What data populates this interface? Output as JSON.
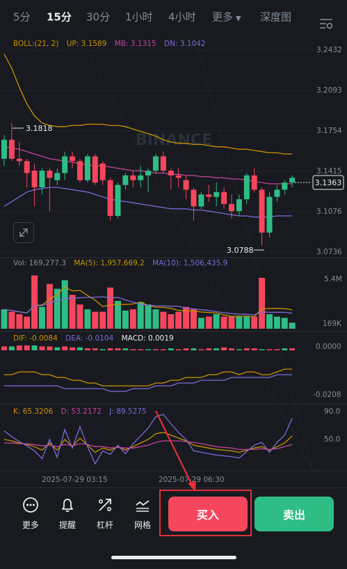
{
  "tabs": [
    {
      "label": "5分"
    },
    {
      "label": "15分"
    },
    {
      "label": "30分"
    },
    {
      "label": "1小时"
    },
    {
      "label": "4小时"
    },
    {
      "label": "更多"
    },
    {
      "label": "深度图"
    }
  ],
  "active_tab": "15分",
  "boll": {
    "label": "BOLL:(21, 2)",
    "up": "UP: 3.1589",
    "mb": "MB: 3.1315",
    "dn": "DN: 3.1042"
  },
  "price_axis": [
    "3.2432",
    "3.2093",
    "3.1754",
    "3.1415",
    "3.1076",
    "3.0736"
  ],
  "current_price": "3.1363",
  "high_marker": "3.1818",
  "low_marker": "3.0788",
  "watermark": "BINANCE",
  "volume": {
    "vol": "Vol: 169,277.3",
    "ma5": "MA(5): 1,957,669.2",
    "ma10": "MA(10): 1,506,435.9",
    "axis_top": "5.4M",
    "axis_bottom": "169K"
  },
  "macd": {
    "dif": "DIF: -0.0084",
    "dea": "DEA: -0.0104",
    "macd": "MACD: 0.0019",
    "axis_top": "0.0000",
    "axis_bottom": "-0.0208"
  },
  "kdj": {
    "k": "K: 65.3206",
    "d": "D: 53.2172",
    "j": "J: 89.5275",
    "axis_top": "90.0",
    "axis_mid": "50.0"
  },
  "time_labels": [
    "2025-07-29 03:15",
    "2025-07-29 06:30"
  ],
  "toolbar": [
    {
      "label": "更多",
      "icon": "more-dots-icon"
    },
    {
      "label": "提醒",
      "icon": "bell-icon"
    },
    {
      "label": "杠杆",
      "icon": "leverage-icon"
    },
    {
      "label": "网格",
      "icon": "grid-chart-icon"
    }
  ],
  "buy_label": "买入",
  "sell_label": "卖出",
  "colors": {
    "up": "#2ebd85",
    "down": "#f6465d",
    "boll_up": "#c99400",
    "boll_mb": "#c2449b",
    "boll_dn": "#7d6bd8"
  },
  "chart_data": {
    "type": "candlestick",
    "y_range": [
      3.0736,
      3.2432
    ],
    "candles": [
      {
        "o": 3.152,
        "h": 3.172,
        "l": 3.146,
        "c": 3.168
      },
      {
        "o": 3.168,
        "h": 3.182,
        "l": 3.15,
        "c": 3.152
      },
      {
        "o": 3.152,
        "h": 3.166,
        "l": 3.146,
        "c": 3.15
      },
      {
        "o": 3.15,
        "h": 3.152,
        "l": 3.128,
        "c": 3.14
      },
      {
        "o": 3.142,
        "h": 3.148,
        "l": 3.112,
        "c": 3.128
      },
      {
        "o": 3.128,
        "h": 3.144,
        "l": 3.122,
        "c": 3.142
      },
      {
        "o": 3.142,
        "h": 3.144,
        "l": 3.108,
        "c": 3.136
      },
      {
        "o": 3.134,
        "h": 3.144,
        "l": 3.13,
        "c": 3.14
      },
      {
        "o": 3.14,
        "h": 3.158,
        "l": 3.134,
        "c": 3.154
      },
      {
        "o": 3.154,
        "h": 3.158,
        "l": 3.144,
        "c": 3.15
      },
      {
        "o": 3.15,
        "h": 3.152,
        "l": 3.132,
        "c": 3.134
      },
      {
        "o": 3.134,
        "h": 3.156,
        "l": 3.132,
        "c": 3.154
      },
      {
        "o": 3.154,
        "h": 3.156,
        "l": 3.13,
        "c": 3.132
      },
      {
        "o": 3.148,
        "h": 3.15,
        "l": 3.13,
        "c": 3.134
      },
      {
        "o": 3.134,
        "h": 3.136,
        "l": 3.1,
        "c": 3.104
      },
      {
        "o": 3.104,
        "h": 3.132,
        "l": 3.102,
        "c": 3.13
      },
      {
        "o": 3.13,
        "h": 3.14,
        "l": 3.126,
        "c": 3.138
      },
      {
        "o": 3.138,
        "h": 3.142,
        "l": 3.128,
        "c": 3.134
      },
      {
        "o": 3.134,
        "h": 3.146,
        "l": 3.128,
        "c": 3.138
      },
      {
        "o": 3.138,
        "h": 3.144,
        "l": 3.124,
        "c": 3.142
      },
      {
        "o": 3.142,
        "h": 3.156,
        "l": 3.14,
        "c": 3.154
      },
      {
        "o": 3.154,
        "h": 3.158,
        "l": 3.14,
        "c": 3.142
      },
      {
        "o": 3.142,
        "h": 3.144,
        "l": 3.126,
        "c": 3.138
      },
      {
        "o": 3.138,
        "h": 3.144,
        "l": 3.128,
        "c": 3.136
      },
      {
        "o": 3.134,
        "h": 3.138,
        "l": 3.118,
        "c": 3.126
      },
      {
        "o": 3.126,
        "h": 3.128,
        "l": 3.1,
        "c": 3.112
      },
      {
        "o": 3.112,
        "h": 3.124,
        "l": 3.11,
        "c": 3.122
      },
      {
        "o": 3.122,
        "h": 3.13,
        "l": 3.116,
        "c": 3.12
      },
      {
        "o": 3.12,
        "h": 3.132,
        "l": 3.112,
        "c": 3.124
      },
      {
        "o": 3.124,
        "h": 3.128,
        "l": 3.11,
        "c": 3.114
      },
      {
        "o": 3.114,
        "h": 3.122,
        "l": 3.102,
        "c": 3.108
      },
      {
        "o": 3.108,
        "h": 3.122,
        "l": 3.104,
        "c": 3.118
      },
      {
        "o": 3.118,
        "h": 3.14,
        "l": 3.114,
        "c": 3.138
      },
      {
        "o": 3.138,
        "h": 3.144,
        "l": 3.124,
        "c": 3.126
      },
      {
        "o": 3.126,
        "h": 3.128,
        "l": 3.079,
        "c": 3.09
      },
      {
        "o": 3.09,
        "h": 3.124,
        "l": 3.086,
        "c": 3.12
      },
      {
        "o": 3.12,
        "h": 3.13,
        "l": 3.116,
        "c": 3.126
      },
      {
        "o": 3.126,
        "h": 3.134,
        "l": 3.122,
        "c": 3.132
      },
      {
        "o": 3.132,
        "h": 3.138,
        "l": 3.128,
        "c": 3.136
      }
    ],
    "boll_up": [
      3.24,
      3.228,
      3.212,
      3.198,
      3.188,
      3.182,
      3.18,
      3.179,
      3.179,
      3.18,
      3.18,
      3.181,
      3.181,
      3.181,
      3.18,
      3.18,
      3.179,
      3.177,
      3.175,
      3.173,
      3.171,
      3.168,
      3.166,
      3.165,
      3.165,
      3.164,
      3.164,
      3.163,
      3.162,
      3.162,
      3.161,
      3.16,
      3.16,
      3.159,
      3.158,
      3.157,
      3.157,
      3.156,
      3.156
    ],
    "boll_mb": [
      3.162,
      3.161,
      3.16,
      3.158,
      3.156,
      3.154,
      3.152,
      3.151,
      3.15,
      3.149,
      3.148,
      3.147,
      3.146,
      3.146,
      3.145,
      3.144,
      3.143,
      3.142,
      3.142,
      3.141,
      3.14,
      3.14,
      3.139,
      3.139,
      3.138,
      3.138,
      3.137,
      3.137,
      3.136,
      3.136,
      3.135,
      3.135,
      3.134,
      3.133,
      3.132,
      3.131,
      3.131,
      3.131,
      3.131
    ],
    "boll_dn": [
      3.112,
      3.116,
      3.12,
      3.124,
      3.126,
      3.127,
      3.128,
      3.128,
      3.127,
      3.126,
      3.125,
      3.124,
      3.122,
      3.12,
      3.118,
      3.117,
      3.116,
      3.115,
      3.114,
      3.113,
      3.112,
      3.111,
      3.11,
      3.11,
      3.11,
      3.109,
      3.109,
      3.108,
      3.107,
      3.106,
      3.105,
      3.104,
      3.104,
      3.103,
      3.103,
      3.103,
      3.104,
      3.104,
      3.104
    ],
    "volumes": [
      1.6,
      1.4,
      1.2,
      1.0,
      4.4,
      1.8,
      3.7,
      3.3,
      4.0,
      2.8,
      2.0,
      1.6,
      1.4,
      1.4,
      3.4,
      2.3,
      1.5,
      1.6,
      2.2,
      2.0,
      1.6,
      1.4,
      1.2,
      1.4,
      1.8,
      1.6,
      0.9,
      1.0,
      1.2,
      1.0,
      1.0,
      1.0,
      1.0,
      1.0,
      4.2,
      1.2,
      1.0,
      0.9,
      0.5
    ],
    "macd_dif": [
      -0.01,
      -0.01,
      -0.009,
      -0.009,
      -0.009,
      -0.01,
      -0.01,
      -0.011,
      -0.011,
      -0.012,
      -0.012,
      -0.013,
      -0.013,
      -0.014,
      -0.014,
      -0.014,
      -0.014,
      -0.014,
      -0.014,
      -0.014,
      -0.013,
      -0.013,
      -0.012,
      -0.012,
      -0.011,
      -0.011,
      -0.011,
      -0.01,
      -0.01,
      -0.009,
      -0.009,
      -0.01,
      -0.009,
      -0.009,
      -0.01,
      -0.01,
      -0.009,
      -0.008,
      -0.008
    ],
    "macd_dea": [
      -0.014,
      -0.014,
      -0.014,
      -0.014,
      -0.014,
      -0.014,
      -0.014,
      -0.014,
      -0.015,
      -0.015,
      -0.015,
      -0.015,
      -0.015,
      -0.015,
      -0.016,
      -0.016,
      -0.016,
      -0.015,
      -0.015,
      -0.015,
      -0.014,
      -0.014,
      -0.014,
      -0.013,
      -0.013,
      -0.013,
      -0.012,
      -0.012,
      -0.012,
      -0.012,
      -0.011,
      -0.011,
      -0.011,
      -0.011,
      -0.011,
      -0.011,
      -0.01,
      -0.01,
      -0.01
    ],
    "kdj_k": [
      60,
      58,
      55,
      53,
      50,
      45,
      55,
      45,
      60,
      50,
      62,
      52,
      42,
      48,
      45,
      50,
      45,
      50,
      55,
      60,
      68,
      70,
      66,
      62,
      58,
      52,
      50,
      48,
      46,
      45,
      44,
      42,
      45,
      48,
      50,
      45,
      50,
      55,
      65
    ],
    "kdj_d": [
      55,
      55,
      54,
      54,
      53,
      51,
      52,
      50,
      53,
      51,
      54,
      53,
      50,
      50,
      48,
      49,
      48,
      48,
      50,
      52,
      56,
      58,
      58,
      58,
      57,
      56,
      54,
      52,
      50,
      49,
      48,
      46,
      46,
      46,
      47,
      46,
      47,
      50,
      53
    ],
    "kdj_j": [
      72,
      64,
      57,
      51,
      44,
      33,
      60,
      35,
      74,
      48,
      78,
      50,
      26,
      44,
      39,
      52,
      40,
      54,
      65,
      76,
      92,
      95,
      82,
      70,
      60,
      44,
      42,
      40,
      38,
      37,
      36,
      34,
      43,
      52,
      56,
      42,
      56,
      66,
      90
    ]
  }
}
